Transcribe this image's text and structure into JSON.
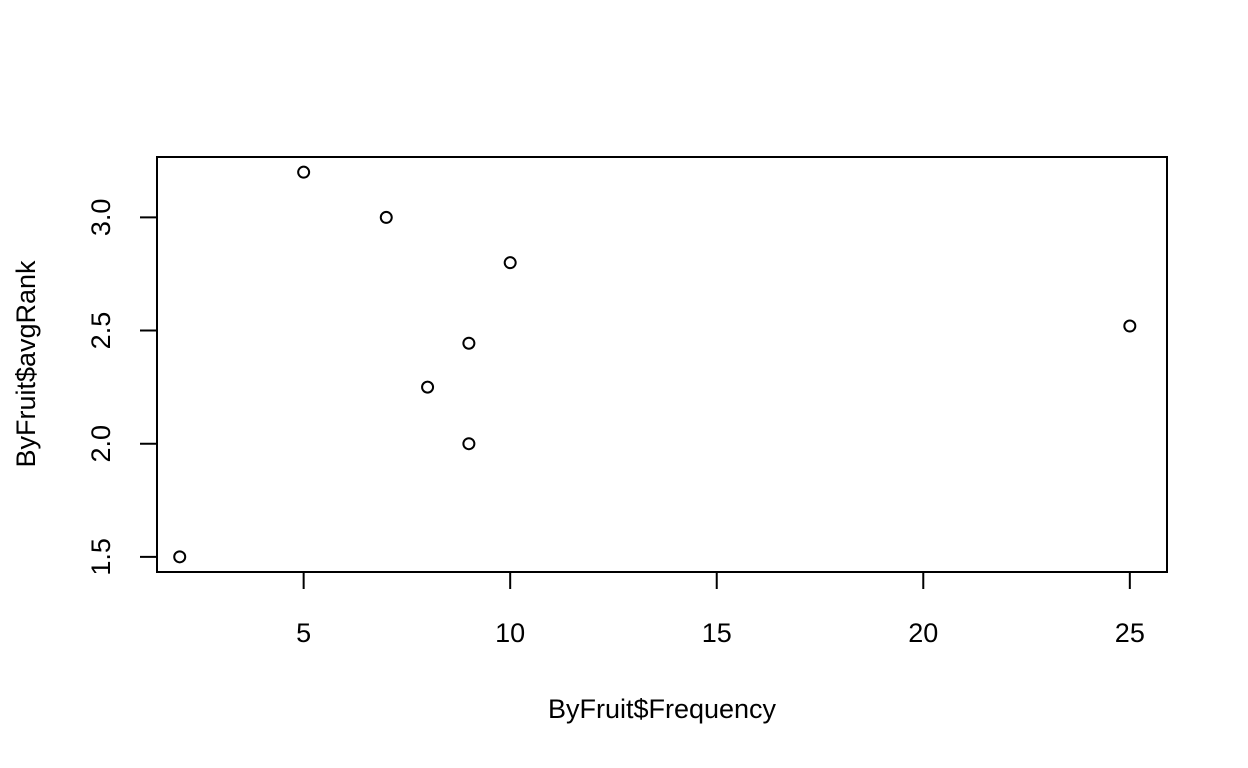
{
  "chart_data": {
    "type": "scatter",
    "title": "",
    "xlabel": "ByFruit$Frequency",
    "ylabel": "ByFruit$avgRank",
    "xlim": [
      1.45,
      25.9
    ],
    "ylim": [
      1.433,
      3.267
    ],
    "x_ticks": [
      5,
      10,
      15,
      20,
      25
    ],
    "y_ticks": [
      1.5,
      2.0,
      2.5,
      3.0
    ],
    "x_tick_labels": [
      "5",
      "10",
      "15",
      "20",
      "25"
    ],
    "y_tick_labels": [
      "1.5",
      "2.0",
      "2.5",
      "3.0"
    ],
    "grid": false,
    "legend": "none",
    "marker": "open-circle",
    "color": "#000000",
    "points": [
      {
        "x": 2,
        "y": 1.5
      },
      {
        "x": 5,
        "y": 3.2
      },
      {
        "x": 7,
        "y": 3.0
      },
      {
        "x": 8,
        "y": 2.25
      },
      {
        "x": 9,
        "y": 2.0
      },
      {
        "x": 9,
        "y": 2.444
      },
      {
        "x": 10,
        "y": 2.8
      },
      {
        "x": 25,
        "y": 2.52
      }
    ]
  }
}
